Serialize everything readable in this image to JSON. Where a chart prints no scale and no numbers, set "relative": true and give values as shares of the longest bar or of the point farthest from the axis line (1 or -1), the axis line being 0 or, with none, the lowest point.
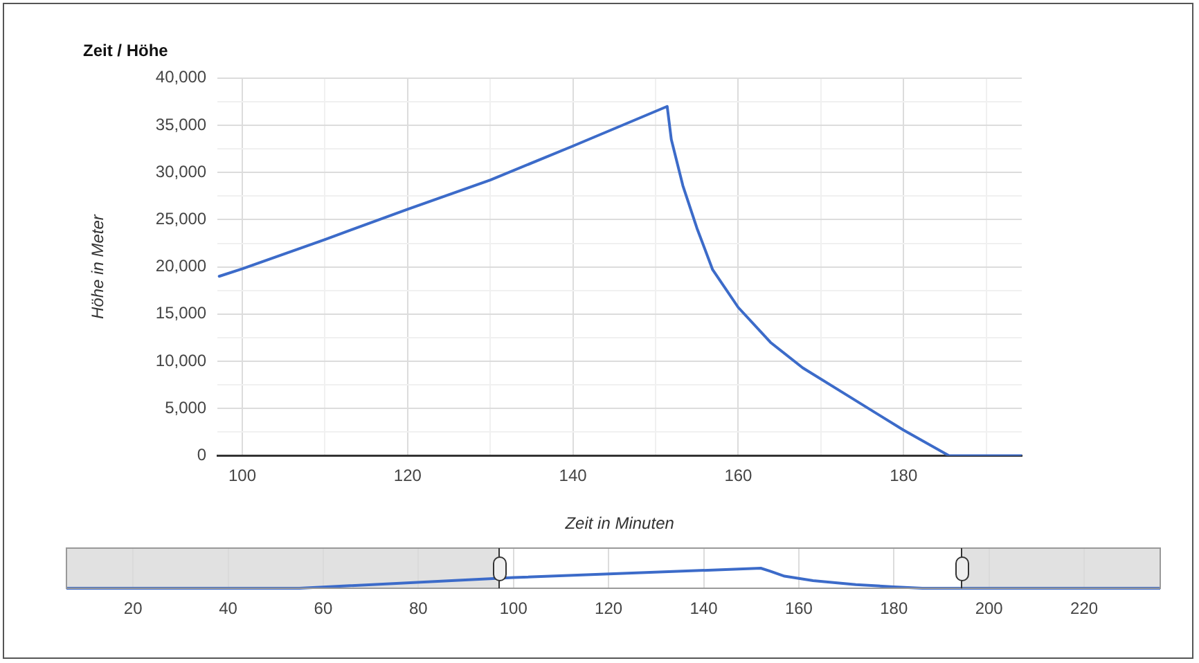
{
  "chart_data": [
    {
      "type": "line",
      "title": "Zeit / Höhe",
      "xlabel": "Zeit in Minuten",
      "ylabel": "Höhe in Meter",
      "xlim": [
        97,
        194.3
      ],
      "ylim": [
        0,
        40000
      ],
      "xticks": [
        100,
        {
          "value": 110,
          "label": null
        },
        120,
        {
          "value": 130,
          "label": null
        },
        140,
        {
          "value": 150,
          "label": null
        },
        160,
        {
          "value": 170,
          "label": null
        },
        180,
        {
          "value": 190,
          "label": null
        }
      ],
      "yticks": [
        {
          "value": 0,
          "label": "0"
        },
        {
          "value": 2500,
          "label": null
        },
        {
          "value": 5000,
          "label": "5,000"
        },
        {
          "value": 7500,
          "label": null
        },
        {
          "value": 10000,
          "label": "10,000"
        },
        {
          "value": 12500,
          "label": null
        },
        {
          "value": 15000,
          "label": "15,000"
        },
        {
          "value": 17500,
          "label": null
        },
        {
          "value": 20000,
          "label": "20,000"
        },
        {
          "value": 22500,
          "label": null
        },
        {
          "value": 25000,
          "label": "25,000"
        },
        {
          "value": 27500,
          "label": null
        },
        {
          "value": 30000,
          "label": "30,000"
        },
        {
          "value": 32500,
          "label": null
        },
        {
          "value": 35000,
          "label": "35,000"
        },
        {
          "value": 37500,
          "label": null
        },
        {
          "value": 40000,
          "label": "40,000"
        }
      ],
      "grid": true,
      "legend": false,
      "marker": "none",
      "line_style": "solid",
      "series": [
        {
          "color": "#3c6bc9",
          "x": [
            97.2,
            100,
            110,
            120,
            130,
            140,
            151.4,
            151.9,
            153.3,
            155,
            156.9,
            160,
            163.9,
            167.8,
            172.8,
            180,
            185.5,
            194.3
          ],
          "values": [
            19000,
            19800,
            22900,
            26100,
            29200,
            32800,
            37000,
            33500,
            28600,
            24100,
            19700,
            15700,
            12000,
            9300,
            6600,
            2700,
            0,
            0
          ]
        }
      ]
    },
    {
      "type": "line",
      "relative": true,
      "xlim": [
        6,
        236
      ],
      "xticks": [
        20,
        40,
        60,
        80,
        100,
        120,
        140,
        160,
        180,
        200,
        220
      ],
      "grid": "x",
      "legend": false,
      "marker": "none",
      "line_style": "solid",
      "tick_labels": "x",
      "bands": [
        {
          "axis": "x",
          "from": 6,
          "to": 97,
          "color": "#d9d9d9"
        },
        {
          "axis": "x",
          "from": 194.3,
          "to": 236,
          "color": "#d9d9d9"
        }
      ],
      "series": [
        {
          "color": "#3c6bc9",
          "x": [
            6,
            55,
            100,
            152,
            154,
            157,
            163,
            172,
            180,
            186,
            236
          ],
          "values": [
            0,
            0,
            0.535,
            1,
            0.85,
            0.6,
            0.38,
            0.18,
            0.07,
            0,
            0
          ]
        }
      ]
    }
  ]
}
